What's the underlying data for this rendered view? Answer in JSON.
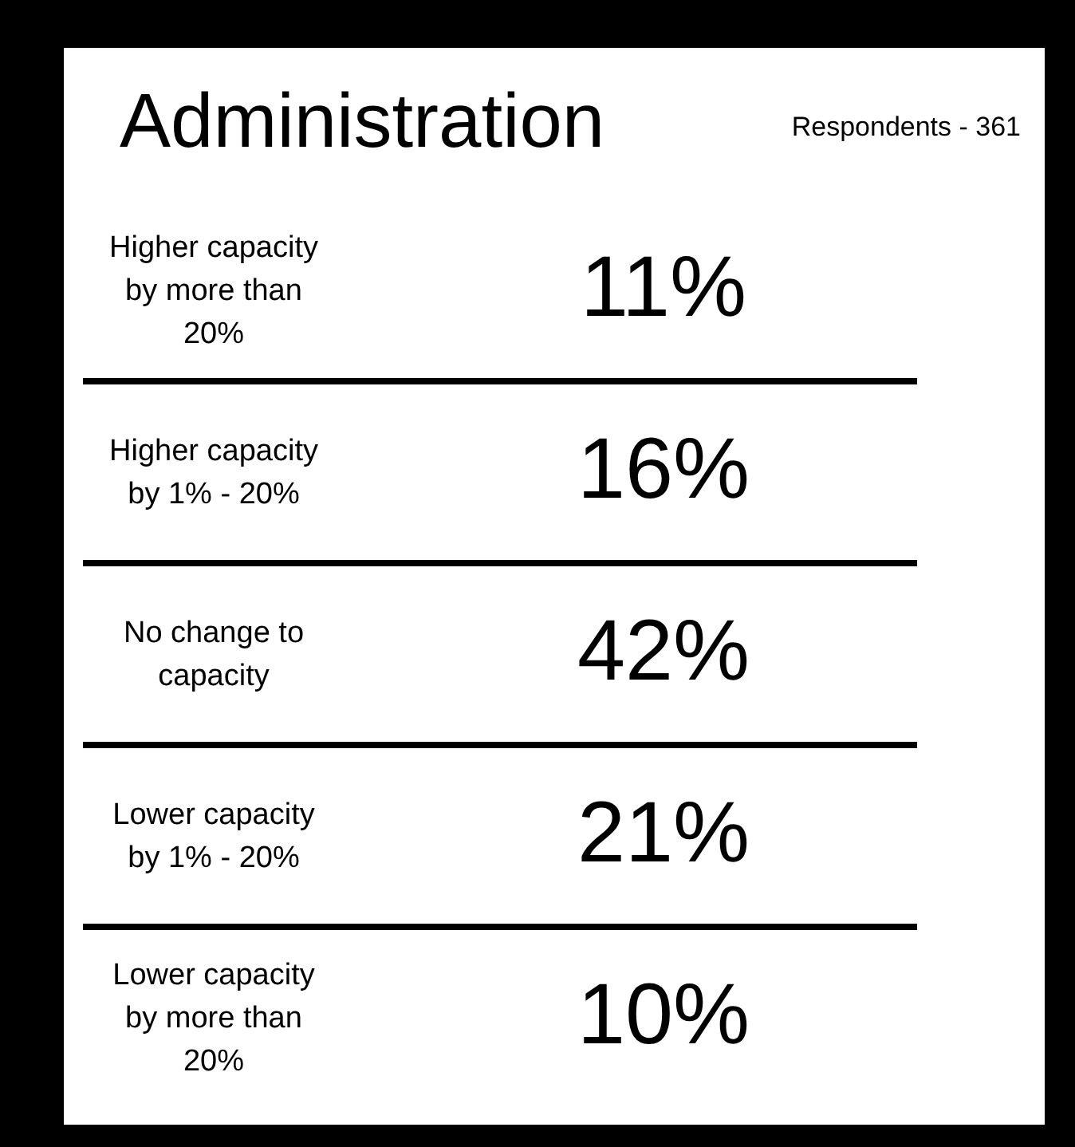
{
  "chart_data": {
    "type": "other",
    "title": "Administration",
    "subtitle": "Respondents - 361",
    "categories": [
      "Higher capacity by more than 20%",
      "Higher capacity by 1% - 20%",
      "No change to capacity",
      "Lower capacity by 1% - 20%",
      "Lower capacity by more than 20%"
    ],
    "values": [
      11,
      16,
      42,
      21,
      10
    ],
    "value_labels": [
      "11%",
      "16%",
      "42%",
      "21%",
      "10%"
    ]
  }
}
